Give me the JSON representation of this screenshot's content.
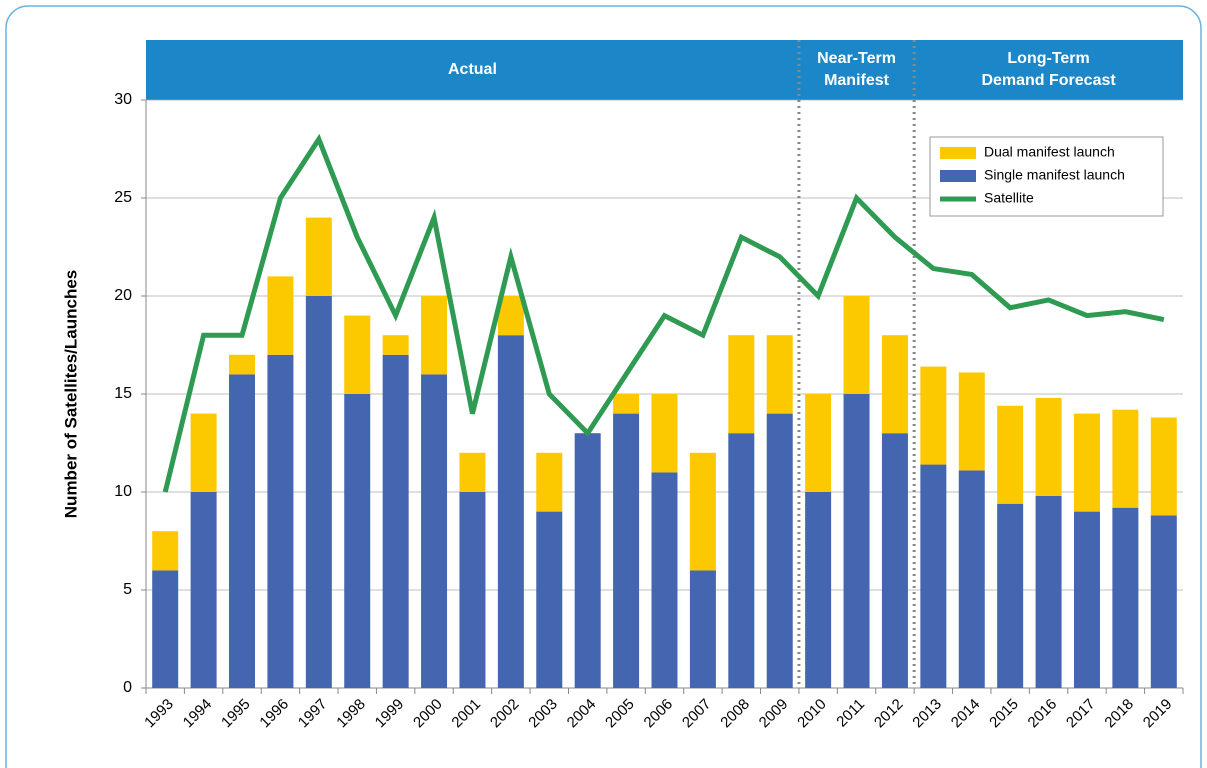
{
  "chart_data": {
    "type": "bar",
    "y_label": "Number of Satellites/Launches",
    "sections": [
      [
        "Actual"
      ],
      [
        "Near-Term",
        "Manifest"
      ],
      [
        "Long-Term",
        "Demand Forecast"
      ]
    ],
    "categories": [
      "1993",
      "1994",
      "1995",
      "1996",
      "1997",
      "1998",
      "1999",
      "2000",
      "2001",
      "2002",
      "2003",
      "2004",
      "2005",
      "2006",
      "2007",
      "2008",
      "2009",
      "2010",
      "2011",
      "2012",
      "2013",
      "2014",
      "2015",
      "2016",
      "2017",
      "2018",
      "2019"
    ],
    "series": [
      {
        "name": "Single manifest launch",
        "color": "#4466b0",
        "type": "bar",
        "values": [
          6,
          10,
          16,
          17,
          20,
          15,
          17,
          16,
          10,
          18,
          9,
          13,
          14,
          11,
          6,
          13,
          14,
          10,
          15,
          13,
          11.4,
          11.1,
          9.4,
          9.8,
          9,
          9.2,
          8.8
        ]
      },
      {
        "name": "Dual manifest launch",
        "color": "#fcc800",
        "type": "bar",
        "values": [
          2,
          4,
          1,
          4,
          4,
          4,
          1,
          4,
          2,
          2,
          3,
          0,
          1,
          4,
          6,
          5,
          4,
          5,
          5,
          5,
          5,
          5,
          5,
          5,
          5,
          5,
          5
        ]
      },
      {
        "name": "Satellite",
        "color": "#2f9a52",
        "type": "line",
        "values": [
          10,
          18,
          18,
          25,
          28,
          23,
          19,
          24,
          14,
          22,
          15,
          13,
          16,
          19,
          18,
          23,
          22,
          20,
          25,
          23,
          21.4,
          21.1,
          19.4,
          19.8,
          19,
          19.2,
          18.8
        ]
      }
    ],
    "ylim": [
      0,
      30
    ],
    "yticks": [
      0,
      5,
      10,
      15,
      20,
      25,
      30
    ],
    "grid": true
  }
}
